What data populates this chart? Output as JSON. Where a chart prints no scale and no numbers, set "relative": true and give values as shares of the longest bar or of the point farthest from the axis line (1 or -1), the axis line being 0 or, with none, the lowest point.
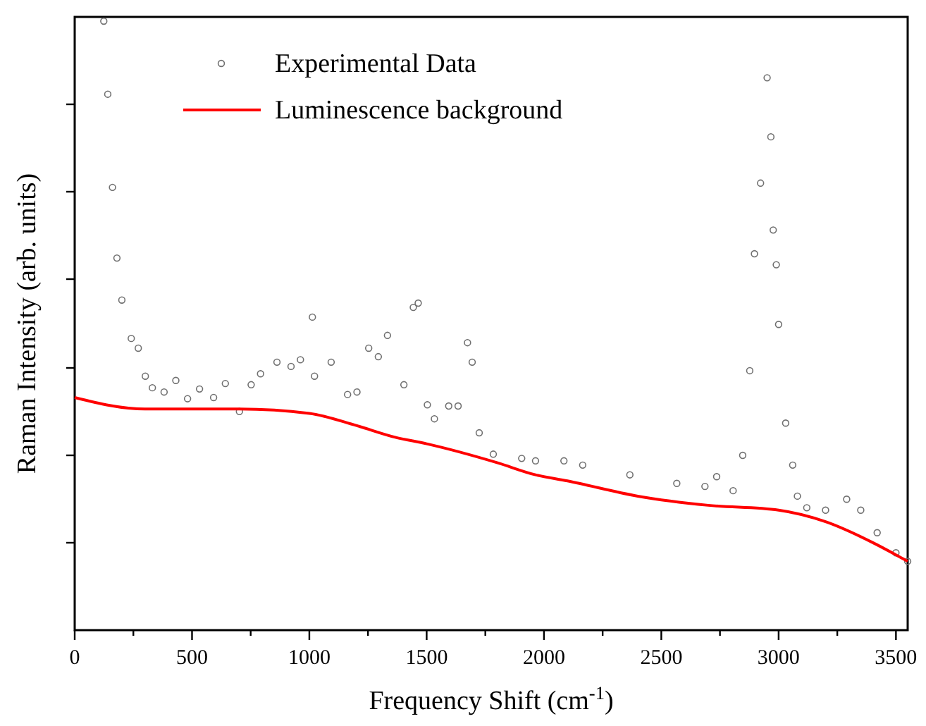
{
  "chart_data": {
    "type": "scatter",
    "relative": true,
    "xlabel": "Frequency Shift (cm$^{-1}$)",
    "ylabel": "Raman Intensity (arb. units)",
    "xlim": [
      0,
      3550
    ],
    "xticks": [
      0,
      {
        "value": 250,
        "label": null
      },
      500,
      {
        "value": 750,
        "label": null
      },
      1000,
      {
        "value": 1250,
        "label": null
      },
      1500,
      {
        "value": 1750,
        "label": null
      },
      2000,
      {
        "value": 2250,
        "label": null
      },
      2500,
      {
        "value": 2750,
        "label": null
      },
      3000,
      {
        "value": 3250,
        "label": null
      },
      3500
    ],
    "legend": "top",
    "grid": false,
    "series": [
      {
        "name": "Experimental Data",
        "type": "scatter",
        "marker": "circle",
        "color": "#707070",
        "x": [
          124,
          141,
          161,
          180,
          201,
          241,
          271,
          301,
          331,
          381,
          431,
          481,
          532,
          592,
          642,
          702,
          752,
          792,
          862,
          922,
          962,
          1013,
          1022,
          1093,
          1163,
          1203,
          1253,
          1294,
          1333,
          1403,
          1443,
          1464,
          1503,
          1533,
          1594,
          1634,
          1674,
          1694,
          1724,
          1784,
          1905,
          1964,
          2085,
          2165,
          2366,
          2566,
          2686,
          2736,
          2806,
          2847,
          2877,
          2897,
          2923,
          2951,
          2967,
          2977,
          2990,
          3000,
          3030,
          3060,
          3080,
          3120,
          3200,
          3290,
          3350,
          3420,
          3500,
          3550
        ],
        "values": [
          1.0,
          0.88,
          0.727,
          0.611,
          0.542,
          0.479,
          0.463,
          0.417,
          0.398,
          0.391,
          0.41,
          0.38,
          0.396,
          0.382,
          0.405,
          0.359,
          0.403,
          0.421,
          0.44,
          0.433,
          0.444,
          0.514,
          0.417,
          0.44,
          0.387,
          0.391,
          0.463,
          0.449,
          0.484,
          0.403,
          0.53,
          0.537,
          0.37,
          0.347,
          0.368,
          0.368,
          0.472,
          0.44,
          0.324,
          0.289,
          0.282,
          0.278,
          0.278,
          0.271,
          0.255,
          0.241,
          0.236,
          0.252,
          0.229,
          0.287,
          0.426,
          0.618,
          0.734,
          0.907,
          0.81,
          0.657,
          0.6,
          0.502,
          0.34,
          0.271,
          0.22,
          0.201,
          0.197,
          0.215,
          0.197,
          0.16,
          0.127,
          0.113
        ]
      },
      {
        "name": "Luminescence background",
        "type": "line",
        "marker": "none",
        "line_style": "solid",
        "color": "#ff0000",
        "x": [
          0,
          300,
          700,
          1000,
          1200,
          1363,
          1500,
          1800,
          1964,
          2100,
          2400,
          2700,
          3000,
          3200,
          3400,
          3550
        ],
        "values": [
          0.382,
          0.363,
          0.363,
          0.356,
          0.336,
          0.317,
          0.306,
          0.275,
          0.255,
          0.245,
          0.22,
          0.205,
          0.197,
          0.178,
          0.144,
          0.113
        ]
      }
    ]
  }
}
